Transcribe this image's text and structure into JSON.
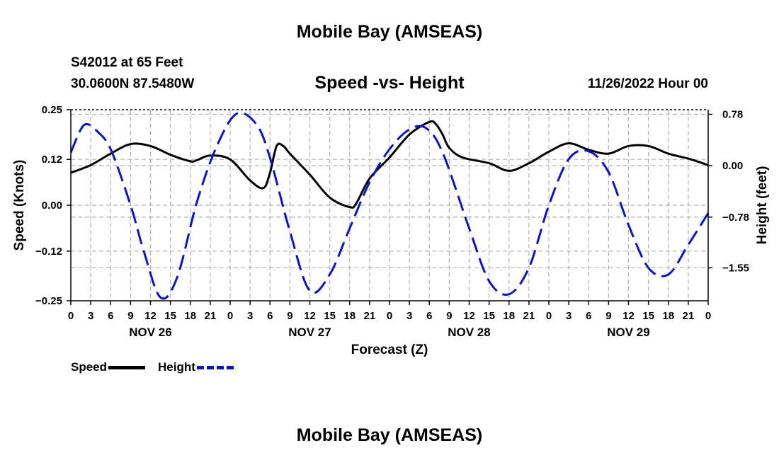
{
  "header": {
    "title": "Mobile Bay (AMSEAS)",
    "station": "S42012 at 65 Feet",
    "coords": "30.0600N  87.5480W",
    "plot_title": "Speed -vs- Height",
    "run_time": "11/26/2022 Hour 00"
  },
  "footer": {
    "title": "Mobile Bay (AMSEAS)"
  },
  "legend": {
    "speed_label": "Speed",
    "height_label": "Height"
  },
  "colors": {
    "speed": "#000000",
    "height": "#0a14c8",
    "grid": "#b0b0b0"
  },
  "chart_data": {
    "type": "line",
    "title": "Speed -vs- Height",
    "xlabel": "Forecast (Z)",
    "ylabel_left": "Speed (Knots)",
    "ylabel_right": "Height (feet)",
    "x_range_hours": [
      0,
      96
    ],
    "x_tick_step_hours": 3,
    "x_tick_labels": [
      "0",
      "3",
      "6",
      "9",
      "12",
      "15",
      "18",
      "21",
      "0",
      "3",
      "6",
      "9",
      "12",
      "15",
      "18",
      "21",
      "0",
      "3",
      "6",
      "9",
      "12",
      "15",
      "18",
      "21",
      "0",
      "3",
      "6",
      "9",
      "12",
      "15",
      "18",
      "21",
      "0"
    ],
    "day_labels": [
      {
        "label": "NOV 26",
        "center_hour": 12
      },
      {
        "label": "NOV 27",
        "center_hour": 36
      },
      {
        "label": "NOV 28",
        "center_hour": 60
      },
      {
        "label": "NOV 29",
        "center_hour": 84
      }
    ],
    "y_left": {
      "range": [
        -0.25,
        0.25
      ],
      "ticks": [
        -0.25,
        -0.12,
        0.0,
        0.12,
        0.25
      ],
      "tick_labels": [
        "−0.25",
        "−0.12",
        "0.00",
        "0.12",
        "0.25"
      ]
    },
    "y_right": {
      "range": [
        -2.05,
        0.85
      ],
      "ticks": [
        -1.55,
        -0.78,
        0.0,
        0.78
      ],
      "tick_labels": [
        "−1.55",
        "−0.78",
        "0.00",
        "0.78"
      ]
    },
    "grid": true,
    "series": [
      {
        "name": "Speed",
        "axis": "left",
        "style": "solid",
        "x": [
          0,
          3,
          6,
          9,
          12,
          15,
          18,
          19,
          21,
          24,
          27,
          29,
          30,
          31,
          32,
          33,
          36,
          39,
          42,
          43,
          45,
          48,
          51,
          54,
          55,
          56,
          57,
          59,
          63,
          66,
          69,
          72,
          75,
          78,
          81,
          84,
          87,
          90,
          93,
          96
        ],
        "values": [
          0.085,
          0.105,
          0.135,
          0.16,
          0.155,
          0.132,
          0.115,
          0.118,
          0.13,
          0.12,
          0.065,
          0.045,
          0.085,
          0.155,
          0.155,
          0.135,
          0.08,
          0.02,
          -0.005,
          0.005,
          0.07,
          0.125,
          0.185,
          0.218,
          0.212,
          0.185,
          0.15,
          0.125,
          0.11,
          0.09,
          0.11,
          0.14,
          0.162,
          0.145,
          0.135,
          0.155,
          0.155,
          0.135,
          0.122,
          0.105
        ]
      },
      {
        "name": "Height",
        "axis": "right",
        "style": "dashed",
        "x": [
          0,
          1.5,
          2.5,
          4,
          6,
          9,
          11,
          13.5,
          16,
          19,
          22,
          25,
          28,
          30,
          33,
          36,
          39,
          42,
          45,
          48,
          51,
          53.5,
          56,
          60,
          63,
          66,
          69,
          72,
          75,
          78,
          81,
          84,
          87,
          90,
          93,
          96
        ],
        "values": [
          0.2,
          0.55,
          0.63,
          0.52,
          0.25,
          -0.6,
          -1.3,
          -2.0,
          -1.7,
          -0.55,
          0.3,
          0.79,
          0.62,
          0.12,
          -1.0,
          -1.9,
          -1.65,
          -0.95,
          -0.25,
          0.25,
          0.55,
          0.57,
          0.2,
          -0.95,
          -1.75,
          -1.95,
          -1.55,
          -0.6,
          0.1,
          0.22,
          -0.1,
          -0.9,
          -1.55,
          -1.65,
          -1.2,
          -0.72
        ]
      }
    ]
  }
}
